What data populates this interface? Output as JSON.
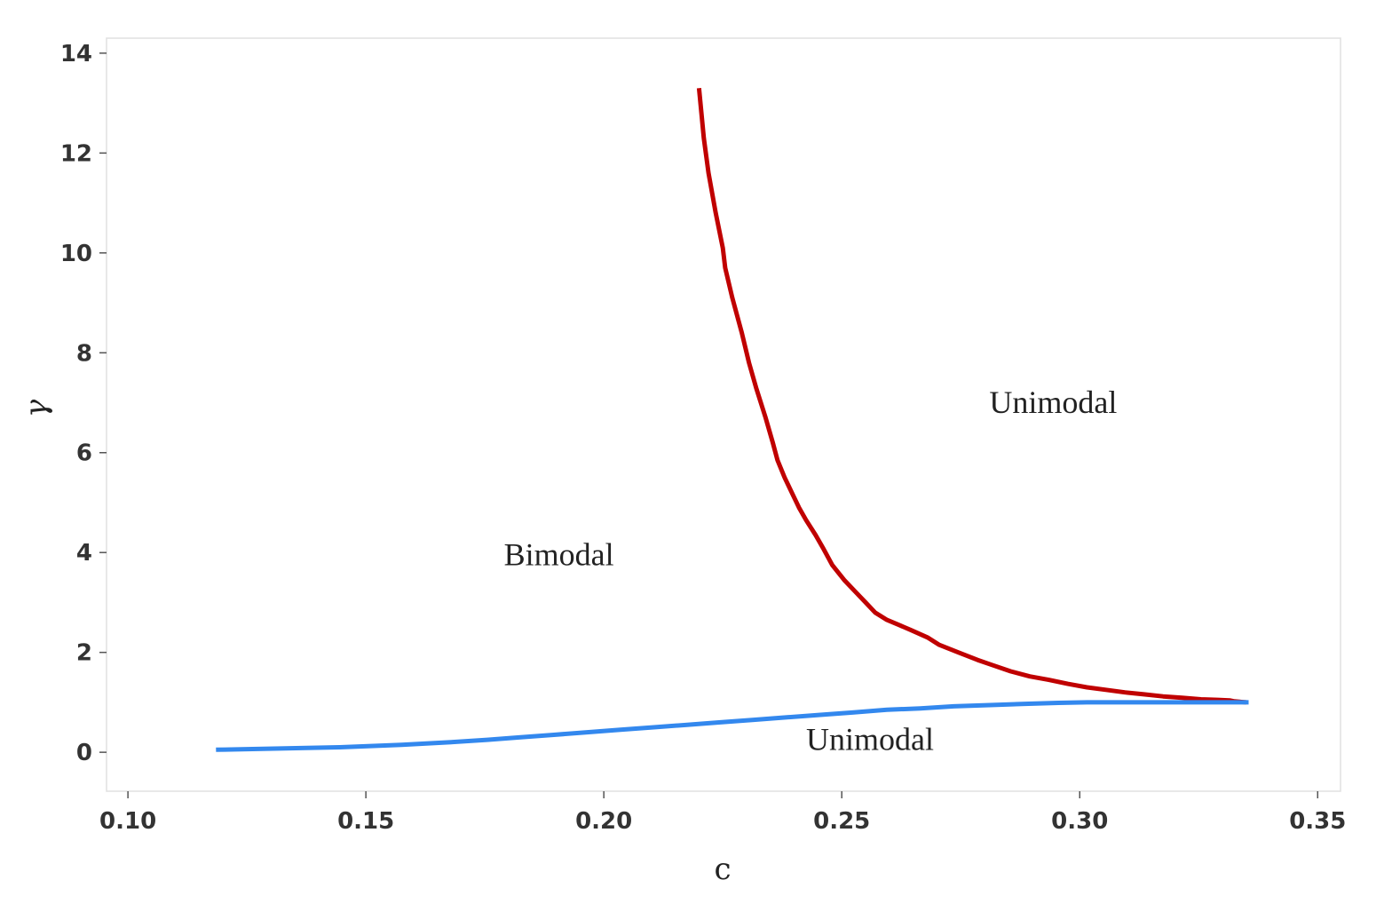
{
  "chart_data": {
    "type": "line",
    "title": "",
    "xlabel": "c",
    "ylabel": "γ",
    "xlim": [
      0.0955,
      0.3548
    ],
    "ylim": [
      -0.78,
      14.3
    ],
    "xticks": [
      0.1,
      0.15,
      0.2,
      0.25,
      0.3,
      0.35
    ],
    "xtick_labels": [
      "0.10",
      "0.15",
      "0.20",
      "0.25",
      "0.30",
      "0.35"
    ],
    "yticks": [
      0,
      2,
      4,
      6,
      8,
      10,
      12,
      14
    ],
    "ytick_labels": [
      "0",
      "2",
      "4",
      "6",
      "8",
      "10",
      "12",
      "14"
    ],
    "grid": false,
    "legend": "none",
    "colors": {
      "red_curve": "#c00000",
      "blue_curve": "#3388ee",
      "frame": "#e0e0e0"
    },
    "series": [
      {
        "color": "#c00000",
        "x": [
          0.22,
          0.221,
          0.222,
          0.2235,
          0.225,
          0.2255,
          0.227,
          0.229,
          0.2305,
          0.232,
          0.234,
          0.2355,
          0.2365,
          0.238,
          0.2395,
          0.241,
          0.2425,
          0.2445,
          0.246,
          0.248,
          0.2505,
          0.253,
          0.255,
          0.257,
          0.2595,
          0.262,
          0.2645,
          0.268,
          0.2705,
          0.2745,
          0.2785,
          0.2815,
          0.2855,
          0.2895,
          0.2935,
          0.2975,
          0.3015,
          0.3055,
          0.3095,
          0.3135,
          0.3175,
          0.3215,
          0.3255,
          0.329,
          0.3315,
          0.3325,
          0.335
        ],
        "y": [
          13.3,
          12.3,
          11.6,
          10.8,
          10.1,
          9.7,
          9.1,
          8.4,
          7.8,
          7.3,
          6.7,
          6.2,
          5.85,
          5.5,
          5.2,
          4.9,
          4.65,
          4.35,
          4.1,
          3.75,
          3.45,
          3.2,
          3.0,
          2.8,
          2.65,
          2.55,
          2.45,
          2.3,
          2.15,
          2.0,
          1.85,
          1.75,
          1.62,
          1.52,
          1.45,
          1.37,
          1.3,
          1.25,
          1.2,
          1.16,
          1.12,
          1.09,
          1.06,
          1.05,
          1.04,
          1.02,
          1.0
        ]
      },
      {
        "color": "#3388ee",
        "x": [
          0.1185,
          0.1445,
          0.1575,
          0.1675,
          0.1755,
          0.1825,
          0.1895,
          0.1965,
          0.2035,
          0.2105,
          0.2175,
          0.2245,
          0.2315,
          0.2385,
          0.2455,
          0.2525,
          0.2595,
          0.2665,
          0.2735,
          0.2825,
          0.2885,
          0.2955,
          0.3015,
          0.3355
        ],
        "y": [
          0.05,
          0.1,
          0.15,
          0.2,
          0.25,
          0.3,
          0.35,
          0.4,
          0.45,
          0.5,
          0.55,
          0.6,
          0.65,
          0.7,
          0.75,
          0.8,
          0.85,
          0.88,
          0.92,
          0.95,
          0.97,
          0.99,
          1.0,
          1.0
        ]
      }
    ],
    "annotations": [
      {
        "text": "Unimodal",
        "x": 0.281,
        "y": 6.8
      },
      {
        "text": "Bimodal",
        "x": 0.179,
        "y": 3.75
      },
      {
        "text": "Unimodal",
        "x": 0.2425,
        "y": 0.05
      }
    ]
  }
}
